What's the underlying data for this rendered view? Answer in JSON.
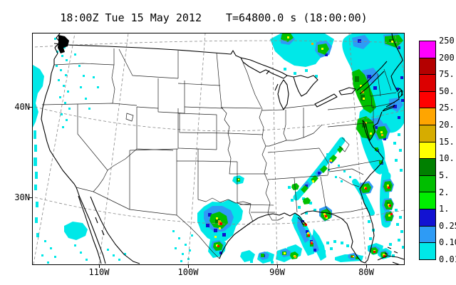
{
  "title": {
    "left": "18:00Z Tue 15 May 2012",
    "right": "T=64800.0 s (18:00:00)"
  },
  "axes": {
    "lat": [
      {
        "label": "40N"
      },
      {
        "label": "30N"
      }
    ],
    "lon": [
      {
        "label": "110W"
      },
      {
        "label": "100W"
      },
      {
        "label": "90W"
      },
      {
        "label": "80W"
      }
    ]
  },
  "colorbar": {
    "boundary_labels": [
      "250.",
      "200.",
      "75.",
      "50.",
      "25.",
      "20.",
      "15.",
      "10.",
      "5.",
      "2.",
      "1.",
      "0.25",
      "0.10",
      "0.01"
    ],
    "cell_colors": [
      "#FF00FF",
      "#B40000",
      "#DC0000",
      "#FF0000",
      "#FFA500",
      "#D6AC00",
      "#FFFF00",
      "#008000",
      "#00BE00",
      "#00EE00",
      "#1212D2",
      "#2E9BF5",
      "#00E8E8"
    ]
  },
  "map": {
    "region": "Continental United States",
    "line_colors": {
      "coast": "#000000",
      "states": "#222222",
      "graticule": "#888888"
    },
    "precip_palette": {
      "light": "#00E8E8",
      "moderate": "#2E9BF5",
      "heavy_blue": "#1111D0",
      "green": "#00C000",
      "dark_green": "#007800",
      "yellow": "#FFFF00",
      "gold": "#D2AA00",
      "orange": "#FFA500",
      "red": "#FF0000",
      "dark_red": "#C00000"
    }
  }
}
